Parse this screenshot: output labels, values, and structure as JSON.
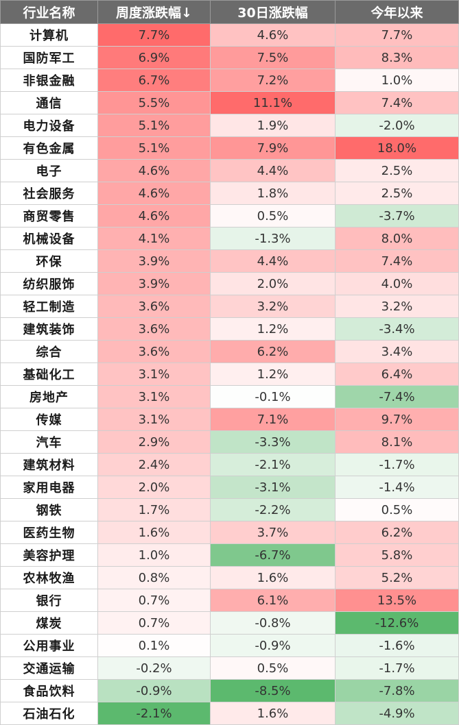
{
  "colors": {
    "header_bg": "#6b6b6b",
    "header_text": "#ffffff",
    "positive_max": "#ff6b6b",
    "negative_max": "#5cb96e",
    "neutral": "#ffffff"
  },
  "chart_data": {
    "type": "heatmap",
    "columns": [
      "行业名称",
      "周度涨跌幅↓",
      "30日涨跌幅",
      "今年以来"
    ],
    "rows": [
      {
        "name": "计算机",
        "values": [
          "7.7%",
          "4.6%",
          "7.7%"
        ]
      },
      {
        "name": "国防军工",
        "values": [
          "6.9%",
          "7.5%",
          "8.3%"
        ]
      },
      {
        "name": "非银金融",
        "values": [
          "6.7%",
          "7.2%",
          "1.0%"
        ]
      },
      {
        "name": "通信",
        "values": [
          "5.5%",
          "11.1%",
          "7.4%"
        ]
      },
      {
        "name": "电力设备",
        "values": [
          "5.1%",
          "1.9%",
          "-2.0%"
        ]
      },
      {
        "name": "有色金属",
        "values": [
          "5.1%",
          "7.9%",
          "18.0%"
        ]
      },
      {
        "name": "电子",
        "values": [
          "4.6%",
          "4.4%",
          "2.5%"
        ]
      },
      {
        "name": "社会服务",
        "values": [
          "4.6%",
          "1.8%",
          "2.5%"
        ]
      },
      {
        "name": "商贸零售",
        "values": [
          "4.6%",
          "0.5%",
          "-3.7%"
        ]
      },
      {
        "name": "机械设备",
        "values": [
          "4.1%",
          "-1.3%",
          "8.0%"
        ]
      },
      {
        "name": "环保",
        "values": [
          "3.9%",
          "4.4%",
          "7.4%"
        ]
      },
      {
        "name": "纺织服饰",
        "values": [
          "3.9%",
          "2.0%",
          "4.0%"
        ]
      },
      {
        "name": "轻工制造",
        "values": [
          "3.6%",
          "3.2%",
          "3.2%"
        ]
      },
      {
        "name": "建筑装饰",
        "values": [
          "3.6%",
          "1.2%",
          "-3.4%"
        ]
      },
      {
        "name": "综合",
        "values": [
          "3.6%",
          "6.2%",
          "3.4%"
        ]
      },
      {
        "name": "基础化工",
        "values": [
          "3.1%",
          "1.2%",
          "6.4%"
        ]
      },
      {
        "name": "房地产",
        "values": [
          "3.1%",
          "-0.1%",
          "-7.4%"
        ]
      },
      {
        "name": "传媒",
        "values": [
          "3.1%",
          "7.1%",
          "9.7%"
        ]
      },
      {
        "name": "汽车",
        "values": [
          "2.9%",
          "-3.3%",
          "8.1%"
        ]
      },
      {
        "name": "建筑材料",
        "values": [
          "2.4%",
          "-2.1%",
          "-1.7%"
        ]
      },
      {
        "name": "家用电器",
        "values": [
          "2.0%",
          "-3.1%",
          "-1.4%"
        ]
      },
      {
        "name": "钢铁",
        "values": [
          "1.7%",
          "-2.2%",
          "0.5%"
        ]
      },
      {
        "name": "医药生物",
        "values": [
          "1.6%",
          "3.7%",
          "6.2%"
        ]
      },
      {
        "name": "美容护理",
        "values": [
          "1.0%",
          "-6.7%",
          "5.8%"
        ]
      },
      {
        "name": "农林牧渔",
        "values": [
          "0.8%",
          "1.6%",
          "5.2%"
        ]
      },
      {
        "name": "银行",
        "values": [
          "0.7%",
          "6.1%",
          "13.5%"
        ]
      },
      {
        "name": "煤炭",
        "values": [
          "0.7%",
          "-0.8%",
          "-12.6%"
        ]
      },
      {
        "name": "公用事业",
        "values": [
          "0.1%",
          "-0.9%",
          "-1.6%"
        ]
      },
      {
        "name": "交通运输",
        "values": [
          "-0.2%",
          "0.5%",
          "-1.7%"
        ]
      },
      {
        "name": "食品饮料",
        "values": [
          "-0.9%",
          "-8.5%",
          "-7.8%"
        ]
      },
      {
        "name": "石油石化",
        "values": [
          "-2.1%",
          "1.6%",
          "-4.9%"
        ]
      }
    ]
  }
}
